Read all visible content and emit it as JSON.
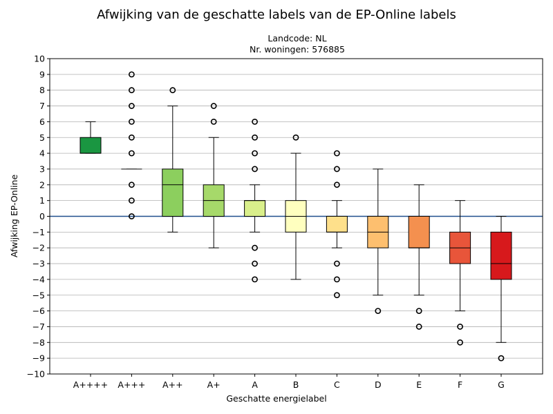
{
  "chart_data": {
    "type": "box",
    "title": "Afwijking van de geschatte labels van de EP-Online labels",
    "subtitle": [
      "Landcode: NL",
      "Nr. woningen: 576885"
    ],
    "xlabel": "Geschatte energielabel",
    "ylabel": "Afwijking EP-Online",
    "ylim": [
      -10,
      10
    ],
    "yticks": [
      -10,
      -9,
      -8,
      -7,
      -6,
      -5,
      -4,
      -3,
      -2,
      -1,
      0,
      1,
      2,
      3,
      4,
      5,
      6,
      7,
      8,
      9,
      10
    ],
    "grid": "horizontal",
    "reference_line": {
      "y": 0,
      "color": "#1f4e8c"
    },
    "categories": [
      "A++++",
      "A+++",
      "A++",
      "A+",
      "A",
      "B",
      "C",
      "D",
      "E",
      "F",
      "G"
    ],
    "boxes": [
      {
        "label": "A++++",
        "whislo": 4,
        "q1": 4,
        "median": 4,
        "q3": 5,
        "whishi": 6,
        "fliers": [],
        "color": "#1a9641"
      },
      {
        "label": "A+++",
        "whislo": 3,
        "q1": 3,
        "median": 3,
        "q3": 3,
        "whishi": 3,
        "fliers": [
          0,
          1,
          2,
          4,
          5,
          6,
          7,
          8,
          9
        ],
        "color": "#4daf4a"
      },
      {
        "label": "A++",
        "whislo": -1,
        "q1": 0,
        "median": 2,
        "q3": 3,
        "whishi": 7,
        "fliers": [
          8
        ],
        "color": "#8ccf5e"
      },
      {
        "label": "A+",
        "whislo": -2,
        "q1": 0,
        "median": 1,
        "q3": 2,
        "whishi": 5,
        "fliers": [
          6,
          7
        ],
        "color": "#a6d96a"
      },
      {
        "label": "A",
        "whislo": -1,
        "q1": 0,
        "median": 1,
        "q3": 1,
        "whishi": 2,
        "fliers": [
          -4,
          -3,
          -2,
          3,
          4,
          5,
          6
        ],
        "color": "#d9ef8b"
      },
      {
        "label": "B",
        "whislo": -4,
        "q1": -1,
        "median": 0,
        "q3": 1,
        "whishi": 4,
        "fliers": [
          5
        ],
        "color": "#ffffbf"
      },
      {
        "label": "C",
        "whislo": -2,
        "q1": -1,
        "median": -1,
        "q3": 0,
        "whishi": 1,
        "fliers": [
          -5,
          -4,
          -3,
          2,
          3,
          4
        ],
        "color": "#fee08b"
      },
      {
        "label": "D",
        "whislo": -5,
        "q1": -2,
        "median": -1,
        "q3": 0,
        "whishi": 3,
        "fliers": [
          -6
        ],
        "color": "#fdbf6f"
      },
      {
        "label": "E",
        "whislo": -5,
        "q1": -2,
        "median": -2,
        "q3": 0,
        "whishi": 2,
        "fliers": [
          -7,
          -6
        ],
        "color": "#f4904f"
      },
      {
        "label": "F",
        "whislo": -6,
        "q1": -3,
        "median": -2,
        "q3": -1,
        "whishi": 1,
        "fliers": [
          -8,
          -7
        ],
        "color": "#e8553a"
      },
      {
        "label": "G",
        "whislo": -8,
        "q1": -4,
        "median": -3,
        "q3": -1,
        "whishi": 0,
        "fliers": [
          -9
        ],
        "color": "#d7191c"
      }
    ]
  }
}
